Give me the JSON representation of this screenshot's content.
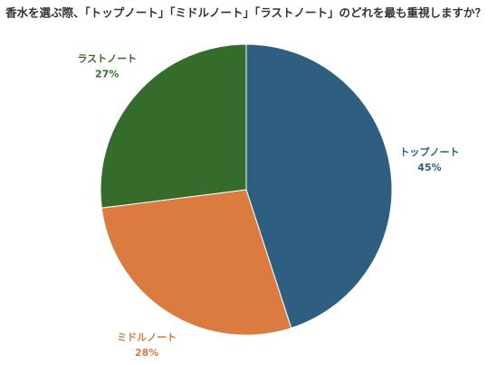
{
  "chart_data": {
    "type": "pie",
    "title": "香水を選ぶ際、「トップノート」「ミドルノート」「ラストノート」のどれを最も重視しますか？",
    "categories": [
      "トップノート",
      "ミドルノート",
      "ラストノート"
    ],
    "values": [
      45,
      28,
      27
    ],
    "value_labels": [
      "45%",
      "28%",
      "27%"
    ],
    "colors": [
      "#2e5f80",
      "#db7b40",
      "#356b2b"
    ]
  }
}
